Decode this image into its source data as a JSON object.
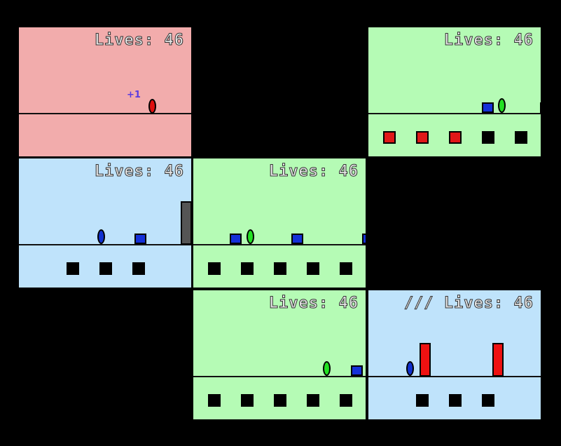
{
  "game": {
    "panels": [
      {
        "id": "p1",
        "lives_text": "Lives: 46",
        "bonus_text": "+1",
        "theme": "red"
      },
      {
        "id": "p2",
        "lives_text": "Lives: 46",
        "theme": "green"
      },
      {
        "id": "p3",
        "lives_text": "Lives: 46",
        "theme": "blue"
      },
      {
        "id": "p4",
        "lives_text": "Lives: 46",
        "theme": "green"
      },
      {
        "id": "p5",
        "lives_text": "Lives: 46",
        "theme": "green"
      },
      {
        "id": "p6",
        "lives_text": "/// Lives: 46",
        "theme": "blue"
      }
    ],
    "colors": {
      "panel_red": "#f2acac",
      "panel_green": "#b5fbb5",
      "panel_blue": "#bfe3fb",
      "slot_red": "#e01818",
      "ball_red": "#e01010",
      "ball_green": "#22e022",
      "ball_blue": "#1030d0",
      "block_blue": "#1530d8"
    }
  }
}
